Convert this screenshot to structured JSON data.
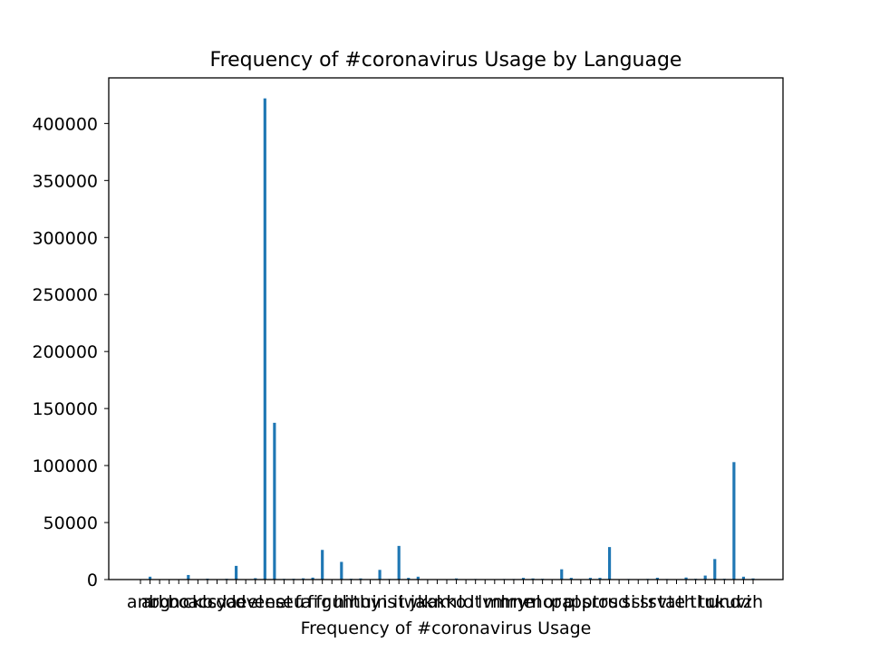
{
  "chart_data": {
    "type": "bar",
    "title": "Frequency of #coronavirus Usage by Language",
    "xlabel": "Frequency of #coronavirus Usage",
    "ylabel": "",
    "ylim": [
      0,
      440000
    ],
    "yticks": [
      0,
      50000,
      100000,
      150000,
      200000,
      250000,
      300000,
      350000,
      400000
    ],
    "grid": false,
    "legend": "none",
    "bar_color": "#1f77b4",
    "categories": [
      "am",
      "ar",
      "bg",
      "bn",
      "bo",
      "ca",
      "ckb",
      "cs",
      "cy",
      "da",
      "de",
      "dv",
      "el",
      "en",
      "es",
      "et",
      "eu",
      "fa",
      "fi",
      "fr",
      "gu",
      "hi",
      "ht",
      "hu",
      "hy",
      "in",
      "is",
      "it",
      "iw",
      "ja",
      "ka",
      "km",
      "kn",
      "ko",
      "lo",
      "lt",
      "lv",
      "ml",
      "mr",
      "my",
      "ne",
      "nl",
      "no",
      "or",
      "pa",
      "pl",
      "ps",
      "pt",
      "ro",
      "ru",
      "sd",
      "si",
      "sl",
      "sr",
      "sv",
      "ta",
      "te",
      "th",
      "tl",
      "tr",
      "uk",
      "und",
      "ur",
      "vi",
      "zh"
    ],
    "values": [
      0,
      2500,
      300,
      300,
      100,
      4000,
      300,
      800,
      200,
      700,
      12000,
      100,
      1200,
      422000,
      137500,
      600,
      700,
      1100,
      1700,
      26000,
      400,
      15500,
      700,
      1000,
      300,
      8500,
      500,
      29500,
      1500,
      2500,
      200,
      100,
      300,
      1000,
      100,
      500,
      400,
      400,
      500,
      500,
      1500,
      1000,
      700,
      200,
      9000,
      1500,
      300,
      1500,
      1500,
      28500,
      300,
      500,
      400,
      600,
      1600,
      500,
      400,
      1800,
      700,
      3500,
      18000,
      700,
      103000,
      2500,
      1000
    ]
  }
}
